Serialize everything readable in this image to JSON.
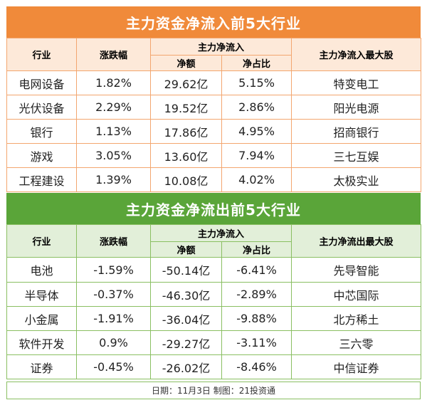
{
  "colors": {
    "inflow_banner": "#f08a3a",
    "inflow_border": "#f3a66f",
    "inflow_header_bg": "#fde9d9",
    "outflow_banner": "#5aa539",
    "outflow_border": "#8abf62",
    "outflow_header_bg": "#e2efd9"
  },
  "inflow": {
    "title": "主力资金净流入前5大行业",
    "headers": {
      "industry": "行业",
      "change": "涨跌幅",
      "group": "主力净流入",
      "net": "净额",
      "ratio": "净占比",
      "top_stock": "主力净流入最大股"
    },
    "rows": [
      {
        "industry": "电网设备",
        "change": "1.82%",
        "net": "29.62亿",
        "ratio": "5.15%",
        "top_stock": "特变电工"
      },
      {
        "industry": "光伏设备",
        "change": "2.29%",
        "net": "19.52亿",
        "ratio": "2.86%",
        "top_stock": "阳光电源"
      },
      {
        "industry": "银行",
        "change": "1.13%",
        "net": "17.86亿",
        "ratio": "4.95%",
        "top_stock": "招商银行"
      },
      {
        "industry": "游戏",
        "change": "3.05%",
        "net": "13.60亿",
        "ratio": "7.94%",
        "top_stock": "三七互娱"
      },
      {
        "industry": "工程建设",
        "change": "1.39%",
        "net": "10.08亿",
        "ratio": "4.02%",
        "top_stock": "太极实业"
      }
    ]
  },
  "outflow": {
    "title": "主力资金净流出前5大行业",
    "headers": {
      "industry": "行业",
      "change": "涨跌幅",
      "group": "主力净流入",
      "net": "净额",
      "ratio": "净占比",
      "top_stock": "主力净流出最大股"
    },
    "rows": [
      {
        "industry": "电池",
        "change": "-1.59%",
        "net": "-50.14亿",
        "ratio": "-6.41%",
        "top_stock": "先导智能"
      },
      {
        "industry": "半导体",
        "change": "-0.37%",
        "net": "-46.30亿",
        "ratio": "-2.89%",
        "top_stock": "中芯国际"
      },
      {
        "industry": "小金属",
        "change": "-1.91%",
        "net": "-36.04亿",
        "ratio": "-9.88%",
        "top_stock": "北方稀土"
      },
      {
        "industry": "软件开发",
        "change": "0.9%",
        "net": "-29.27亿",
        "ratio": "-3.11%",
        "top_stock": "三六零"
      },
      {
        "industry": "证券",
        "change": "-0.45%",
        "net": "-26.02亿",
        "ratio": "-8.46%",
        "top_stock": "中信证券"
      }
    ]
  },
  "footer": "日期：11月3日  制图：21投资通"
}
